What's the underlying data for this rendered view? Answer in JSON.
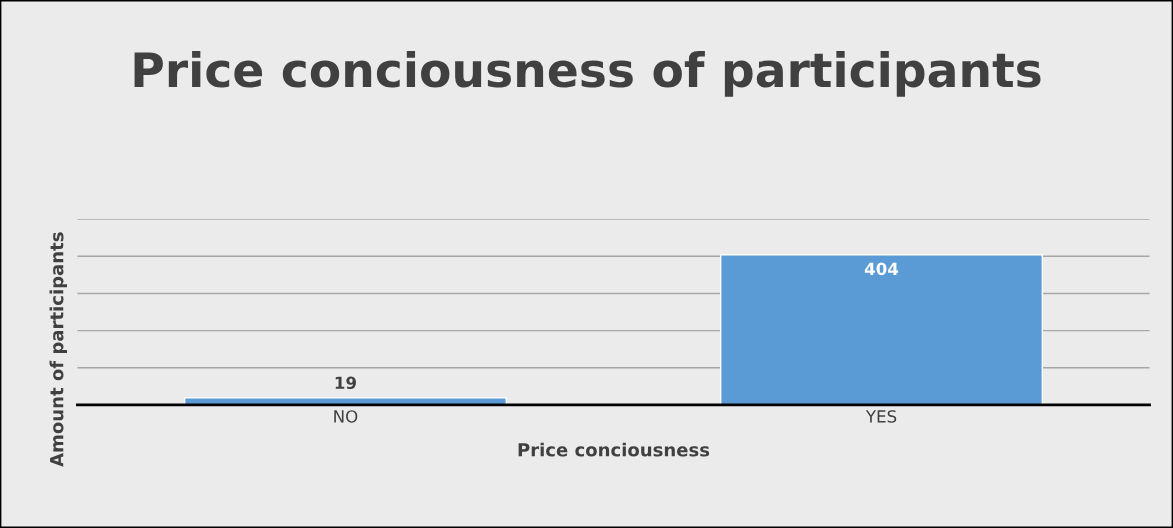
{
  "chart_data": {
    "type": "bar",
    "title": "Price conciousness of participants",
    "xlabel": "Price conciousness",
    "ylabel": "Amount of participants",
    "categories": [
      "NO",
      "YES"
    ],
    "values": [
      19,
      404
    ],
    "color": "#5b9bd5",
    "ylim": [
      0,
      500
    ],
    "yticks": [
      {
        "value": 0,
        "label": null
      },
      {
        "value": 100,
        "label": null
      },
      {
        "value": 200,
        "label": null
      },
      {
        "value": 300,
        "label": null
      },
      {
        "value": 400,
        "label": null
      },
      {
        "value": 500,
        "label": null
      }
    ],
    "grid": "y",
    "data_labels": true,
    "tick_labels": "x"
  }
}
